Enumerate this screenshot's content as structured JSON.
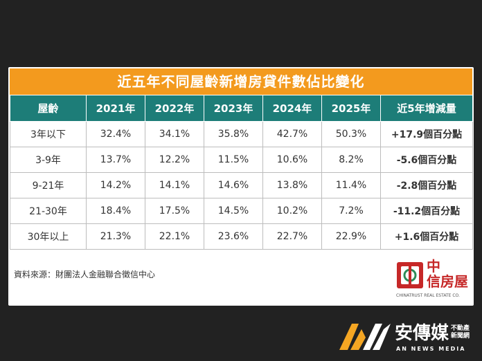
{
  "chart_data": {
    "type": "table",
    "title": "近五年不同屋齡新增房貸件數佔比變化",
    "columns": [
      "屋齡",
      "2021年",
      "2022年",
      "2023年",
      "2024年",
      "2025年",
      "近5年增減量"
    ],
    "rows": [
      {
        "age": "3年以下",
        "values": [
          "32.4%",
          "34.1%",
          "35.8%",
          "42.7%",
          "50.3%"
        ],
        "change": "+17.9個百分點",
        "direction": "up"
      },
      {
        "age": "3-9年",
        "values": [
          "13.7%",
          "12.2%",
          "11.5%",
          "10.6%",
          "8.2%"
        ],
        "change": "-5.6個百分點",
        "direction": "down"
      },
      {
        "age": "9-21年",
        "values": [
          "14.2%",
          "14.1%",
          "14.6%",
          "13.8%",
          "11.4%"
        ],
        "change": "-2.8個百分點",
        "direction": "down"
      },
      {
        "age": "21-30年",
        "values": [
          "18.4%",
          "17.5%",
          "14.5%",
          "10.2%",
          "7.2%"
        ],
        "change": "-11.2個百分點",
        "direction": "down"
      },
      {
        "age": "30年以上",
        "values": [
          "21.3%",
          "22.1%",
          "23.6%",
          "22.7%",
          "22.9%"
        ],
        "change": "+1.6個百分點",
        "direction": "up"
      }
    ],
    "source": "資料來源：財團法人金融聯合徵信中心"
  },
  "colors": {
    "title_bg": "#f39a1e",
    "header_bg": "#1d7d78",
    "increase": "#e02020",
    "decrease": "#2a9a3c"
  },
  "logo": {
    "line1": "中",
    "line2": "信房屋",
    "english": "CHINATRUST REAL ESTATE CO."
  },
  "brand": {
    "name": "安傳媒",
    "tag": "不動產新聞網",
    "english": "AN NEWS MEDIA"
  }
}
